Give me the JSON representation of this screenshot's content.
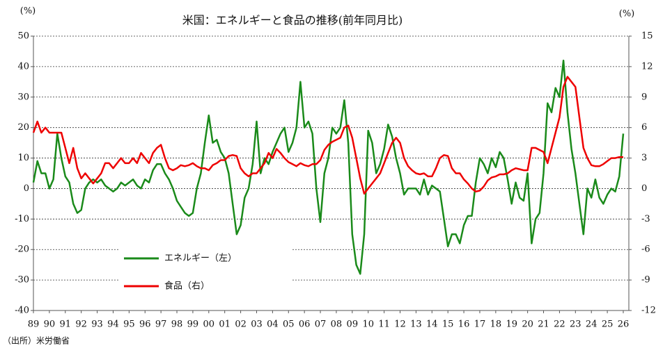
{
  "chart_data": {
    "type": "line",
    "title": "米国：エネルギーと食品の推移(前年同月比)",
    "y_label": "(%)",
    "y2_label": "(%)",
    "source": "（出所）米労働省",
    "x": [
      1989,
      1989.25,
      1989.5,
      1989.75,
      1990,
      1990.25,
      1990.5,
      1990.75,
      1991,
      1991.25,
      1991.5,
      1991.75,
      1992,
      1992.25,
      1992.5,
      1992.75,
      1993,
      1993.25,
      1993.5,
      1993.75,
      1994,
      1994.25,
      1994.5,
      1994.75,
      1995,
      1995.25,
      1995.5,
      1995.75,
      1996,
      1996.25,
      1996.5,
      1996.75,
      1997,
      1997.25,
      1997.5,
      1997.75,
      1998,
      1998.25,
      1998.5,
      1998.75,
      1999,
      1999.25,
      1999.5,
      1999.75,
      2000,
      2000.25,
      2000.5,
      2000.75,
      2001,
      2001.25,
      2001.5,
      2001.75,
      2002,
      2002.25,
      2002.5,
      2002.75,
      2003,
      2003.25,
      2003.5,
      2003.75,
      2004,
      2004.25,
      2004.5,
      2004.75,
      2005,
      2005.25,
      2005.5,
      2005.75,
      2006,
      2006.25,
      2006.5,
      2006.75,
      2007,
      2007.25,
      2007.5,
      2007.75,
      2008,
      2008.25,
      2008.5,
      2008.75,
      2009,
      2009.25,
      2009.5,
      2009.75,
      2010,
      2010.25,
      2010.5,
      2010.75,
      2011,
      2011.25,
      2011.5,
      2011.75,
      2012,
      2012.25,
      2012.5,
      2012.75,
      2013,
      2013.25,
      2013.5,
      2013.75,
      2014,
      2014.25,
      2014.5,
      2014.75,
      2015,
      2015.25,
      2015.5,
      2015.75,
      2016,
      2016.25,
      2016.5,
      2016.75,
      2017,
      2017.25,
      2017.5,
      2017.75,
      2018,
      2018.25,
      2018.5,
      2018.75,
      2019,
      2019.25,
      2019.5,
      2019.75,
      2020,
      2020.25,
      2020.5,
      2020.75,
      2021,
      2021.25,
      2021.5,
      2021.75,
      2022,
      2022.25,
      2022.5,
      2022.75,
      2023,
      2023.25,
      2023.5,
      2023.75,
      2024,
      2024.25,
      2024.5,
      2024.75,
      2025,
      2025.25,
      2025.5,
      2025.75,
      2026
    ],
    "series": [
      {
        "name": "エネルギー（左）",
        "color": "#1a8a1a",
        "axis": "y",
        "values": [
          2,
          9,
          5,
          5,
          0,
          3,
          18,
          10,
          4,
          2,
          -5,
          -8,
          -7,
          0,
          2,
          3,
          2,
          3,
          1,
          0,
          -1,
          0,
          2,
          1,
          2,
          3,
          1,
          0,
          3,
          2,
          6,
          8,
          8,
          5,
          3,
          0,
          -4,
          -6,
          -8,
          -9,
          -8,
          0,
          5,
          15,
          24,
          15,
          16,
          12,
          10,
          5,
          -5,
          -15,
          -12,
          -3,
          0,
          8,
          22,
          5,
          10,
          8,
          12,
          15,
          18,
          20,
          12,
          15,
          20,
          35,
          20,
          22,
          18,
          0,
          -11,
          5,
          10,
          20,
          18,
          20,
          29,
          15,
          -15,
          -25,
          -28,
          -15,
          19,
          15,
          5,
          8,
          13,
          21,
          17,
          10,
          5,
          -2,
          0,
          0,
          0,
          -2,
          3,
          -2,
          1,
          0,
          -1,
          -10,
          -19,
          -15,
          -15,
          -18,
          -12,
          -9,
          -9,
          2,
          10,
          8,
          5,
          10,
          7,
          12,
          10,
          3,
          -5,
          2,
          -3,
          -4,
          5,
          -18,
          -10,
          -8,
          5,
          28,
          25,
          33,
          30,
          42,
          25,
          13,
          5,
          -5,
          -15,
          0,
          -3,
          3,
          -3,
          -5,
          -2,
          0,
          -1,
          4,
          18
        ]
      },
      {
        "name": "食品（右）",
        "color": "#ee0000",
        "axis": "y2",
        "values": [
          5.5,
          6.6,
          5.5,
          6,
          5.5,
          5.5,
          5.5,
          5.5,
          4,
          2.5,
          4,
          2,
          1,
          1.5,
          1,
          0.5,
          1,
          1.5,
          2.5,
          2.5,
          2,
          2.5,
          3,
          2.5,
          2.5,
          3,
          2.5,
          3.5,
          3,
          2.5,
          3.5,
          4,
          4.3,
          3,
          2,
          1.8,
          2,
          2.3,
          2.2,
          2.3,
          2.5,
          2.2,
          2,
          2,
          1.8,
          2.3,
          2.5,
          2.8,
          2.8,
          3.2,
          3.3,
          3.2,
          2,
          1.5,
          1.2,
          1.5,
          1.5,
          2,
          2.5,
          3.5,
          3,
          3.9,
          3.5,
          3,
          2.6,
          2.4,
          2.2,
          2.5,
          2.3,
          2.2,
          2.4,
          2.4,
          2.8,
          3.8,
          4.3,
          4.6,
          4.8,
          5,
          6,
          6.2,
          5,
          3,
          1,
          -0.5,
          0,
          0.5,
          1,
          1.5,
          2.5,
          3.5,
          4.5,
          5,
          4.5,
          3,
          2.2,
          1.8,
          1.5,
          1.4,
          1.5,
          1.2,
          1.2,
          2,
          3,
          3.3,
          3.2,
          2,
          1.5,
          1.5,
          0.9,
          0.5,
          0,
          -0.3,
          -0.2,
          0.2,
          0.8,
          1.1,
          1.2,
          1.4,
          1.4,
          1.5,
          1.8,
          2,
          1.9,
          1.8,
          1.8,
          4,
          4,
          3.8,
          3.6,
          2.5,
          4,
          5.5,
          7,
          10,
          11,
          10.5,
          10,
          7,
          4,
          3,
          2.3,
          2.2,
          2.2,
          2.4,
          2.7,
          3,
          3,
          3.1,
          3.1
        ]
      }
    ],
    "xlim": [
      1989,
      2026.35
    ],
    "xticks": [
      {
        "value": 1989,
        "label": "89"
      },
      {
        "value": 1990,
        "label": "90"
      },
      {
        "value": 1991,
        "label": "91"
      },
      {
        "value": 1992,
        "label": "92"
      },
      {
        "value": 1993,
        "label": "93"
      },
      {
        "value": 1994,
        "label": "94"
      },
      {
        "value": 1995,
        "label": "95"
      },
      {
        "value": 1996,
        "label": "96"
      },
      {
        "value": 1997,
        "label": "97"
      },
      {
        "value": 1998,
        "label": "98"
      },
      {
        "value": 1999,
        "label": "99"
      },
      {
        "value": 2000,
        "label": "00"
      },
      {
        "value": 2001,
        "label": "01"
      },
      {
        "value": 2002,
        "label": "02"
      },
      {
        "value": 2003,
        "label": "03"
      },
      {
        "value": 2004,
        "label": "04"
      },
      {
        "value": 2005,
        "label": "05"
      },
      {
        "value": 2006,
        "label": "06"
      },
      {
        "value": 2007,
        "label": "07"
      },
      {
        "value": 2008,
        "label": "08"
      },
      {
        "value": 2009,
        "label": "09"
      },
      {
        "value": 2010,
        "label": "10"
      },
      {
        "value": 2011,
        "label": "11"
      },
      {
        "value": 2012,
        "label": "12"
      },
      {
        "value": 2013,
        "label": "13"
      },
      {
        "value": 2014,
        "label": "14"
      },
      {
        "value": 2015,
        "label": "15"
      },
      {
        "value": 2016,
        "label": "16"
      },
      {
        "value": 2017,
        "label": "17"
      },
      {
        "value": 2018,
        "label": "18"
      },
      {
        "value": 2019,
        "label": "19"
      },
      {
        "value": 2020,
        "label": "20"
      },
      {
        "value": 2021,
        "label": "21"
      },
      {
        "value": 2022,
        "label": "22"
      },
      {
        "value": 2023,
        "label": "23"
      },
      {
        "value": 2024,
        "label": "24"
      },
      {
        "value": 2025,
        "label": "25"
      },
      {
        "value": 2026,
        "label": "26"
      }
    ],
    "ylim": [
      -40,
      50
    ],
    "yticks": [
      50,
      40,
      30,
      20,
      10,
      0,
      -10,
      -20,
      -30,
      -40
    ],
    "y2lim": [
      -12,
      15
    ],
    "y2ticks": [
      15,
      12,
      9,
      6,
      3,
      0,
      -3,
      -6,
      -9,
      -12
    ],
    "grid": true,
    "legend": "lower-left"
  }
}
